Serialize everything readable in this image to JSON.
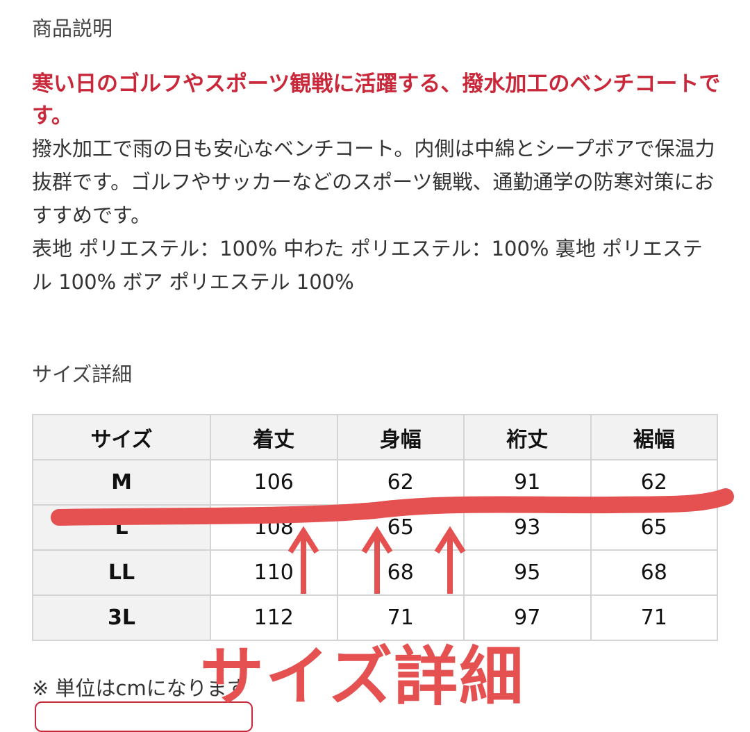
{
  "description_title": "商品説明",
  "headline": "寒い日のゴルフやスポーツ観戦に活躍する、撥水加工のベンチコートです。",
  "body": "撥水加工で雨の日も安心なベンチコート。内側は中綿とシープボアで保温力抜群です。ゴルフやサッカーなどのスポーツ観戦、通勤通学の防寒対策におすすめです。",
  "materials": "表地 ポリエステル：100% 中わた ポリエステル：100% 裏地 ポリエステル 100% ボア ポリエステル 100%",
  "size_title": "サイズ詳細",
  "size_table": {
    "headers": [
      "サイズ",
      "着丈",
      "身幅",
      "裄丈",
      "裾幅"
    ],
    "rows": [
      [
        "M",
        "106",
        "62",
        "91",
        "62"
      ],
      [
        "L",
        "108",
        "65",
        "93",
        "65"
      ],
      [
        "LL",
        "110",
        "68",
        "95",
        "68"
      ],
      [
        "3L",
        "112",
        "71",
        "97",
        "71"
      ]
    ]
  },
  "unit_note": "※ 単位はcmになります",
  "annotation": {
    "text": "サイズ詳細",
    "color": "#e55050"
  },
  "colors": {
    "headline": "#c8283a",
    "table_header_bg": "#f2f2f2",
    "border": "#d4d4d4"
  }
}
